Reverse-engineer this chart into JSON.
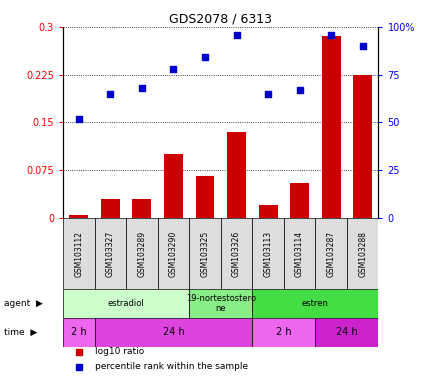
{
  "title": "GDS2078 / 6313",
  "samples": [
    "GSM103112",
    "GSM103327",
    "GSM103289",
    "GSM103290",
    "GSM103325",
    "GSM103326",
    "GSM103113",
    "GSM103114",
    "GSM103287",
    "GSM103288"
  ],
  "log10_ratio": [
    0.005,
    0.03,
    0.03,
    0.1,
    0.065,
    0.135,
    0.02,
    0.055,
    0.285,
    0.225
  ],
  "percentile_rank": [
    52,
    65,
    68,
    78,
    84,
    96,
    65,
    67,
    96,
    90
  ],
  "bar_color": "#cc0000",
  "scatter_color": "#0000cc",
  "ylim_left": [
    0,
    0.3
  ],
  "ylim_right": [
    0,
    100
  ],
  "yticks_left": [
    0,
    0.075,
    0.15,
    0.225,
    0.3
  ],
  "yticks_right": [
    0,
    25,
    50,
    75,
    100
  ],
  "ytick_labels_left": [
    "0",
    "0.075",
    "0.15",
    "0.225",
    "0.3"
  ],
  "ytick_labels_right": [
    "0",
    "25",
    "50",
    "75",
    "100%"
  ],
  "agent_groups": [
    {
      "label": "estradiol",
      "start": 0,
      "end": 4,
      "color": "#ccffcc"
    },
    {
      "label": "19-nortestostero\nne",
      "start": 4,
      "end": 6,
      "color": "#88ee88"
    },
    {
      "label": "estren",
      "start": 6,
      "end": 10,
      "color": "#44dd44"
    }
  ],
  "time_groups": [
    {
      "label": "2 h",
      "start": 0,
      "end": 1,
      "color": "#ee66ee"
    },
    {
      "label": "24 h",
      "start": 1,
      "end": 6,
      "color": "#dd44dd"
    },
    {
      "label": "2 h",
      "start": 6,
      "end": 8,
      "color": "#ee66ee"
    },
    {
      "label": "24 h",
      "start": 8,
      "end": 10,
      "color": "#cc22cc"
    }
  ],
  "sample_bg": "#dddddd",
  "legend_items": [
    {
      "color": "#cc0000",
      "label": "log10 ratio"
    },
    {
      "color": "#0000cc",
      "label": "percentile rank within the sample"
    }
  ]
}
